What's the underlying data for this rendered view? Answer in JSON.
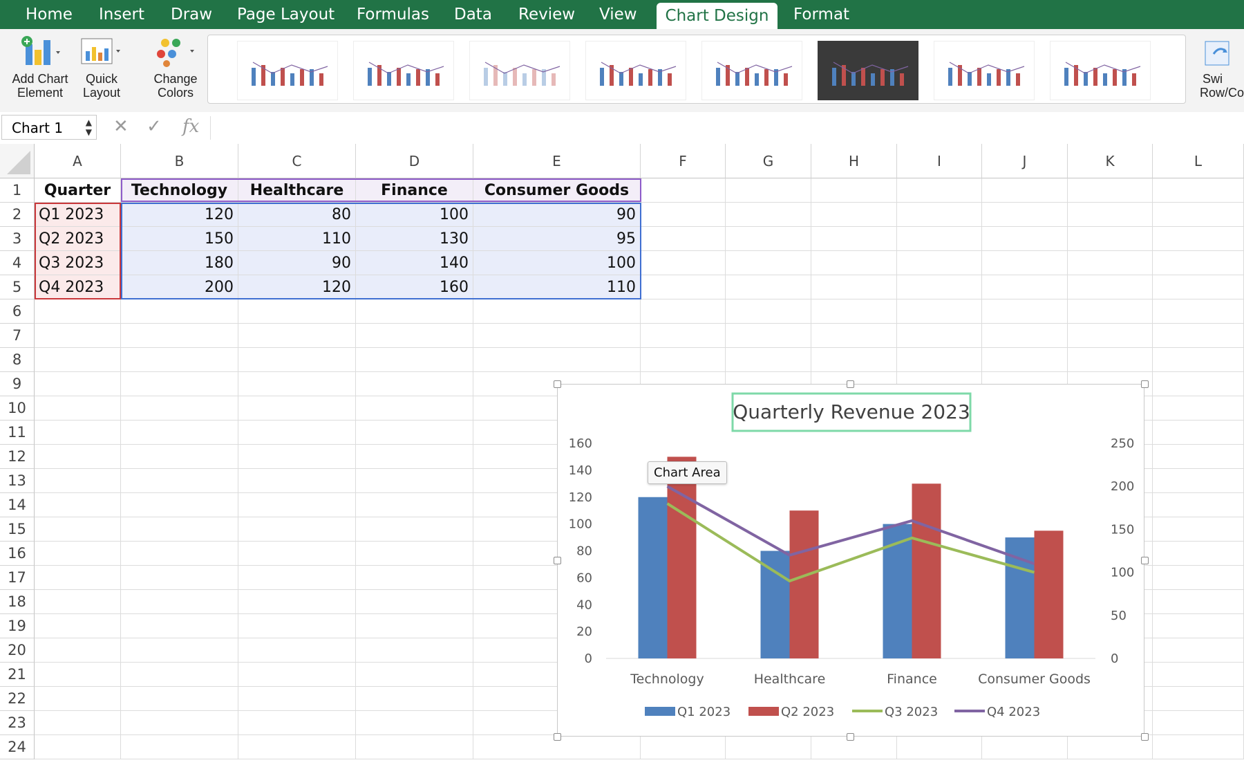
{
  "tabs": [
    {
      "label": "Home",
      "active": false
    },
    {
      "label": "Insert",
      "active": false
    },
    {
      "label": "Draw",
      "active": false
    },
    {
      "label": "Page Layout",
      "active": false
    },
    {
      "label": "Formulas",
      "active": false
    },
    {
      "label": "Data",
      "active": false
    },
    {
      "label": "Review",
      "active": false
    },
    {
      "label": "View",
      "active": false
    },
    {
      "label": "Chart Design",
      "active": true
    },
    {
      "label": "Format",
      "active": false
    }
  ],
  "ribbon": {
    "add_chart_element_line1": "Add Chart",
    "add_chart_element_line2": "Element",
    "quick_layout_line1": "Quick",
    "quick_layout_line2": "Layout",
    "change_colors_line1": "Change",
    "change_colors_line2": "Colors",
    "switch_line1": "Swi",
    "switch_line2": "Row/Co"
  },
  "formula_bar": {
    "name_box": "Chart 1",
    "fx": "fx",
    "value": ""
  },
  "columns": [
    "A",
    "B",
    "C",
    "D",
    "E",
    "F",
    "G",
    "H",
    "I",
    "J",
    "K",
    "L"
  ],
  "rows": [
    "1",
    "2",
    "3",
    "4",
    "5",
    "6",
    "7",
    "8",
    "9",
    "10",
    "11",
    "12",
    "13",
    "14",
    "15",
    "16",
    "17",
    "18",
    "19",
    "20",
    "21",
    "22",
    "23",
    "24"
  ],
  "table": {
    "headers": [
      "Quarter",
      "Technology",
      "Healthcare",
      "Finance",
      "Consumer Goods"
    ],
    "rows": [
      [
        "Q1 2023",
        "120",
        "80",
        "100",
        "90"
      ],
      [
        "Q2 2023",
        "150",
        "110",
        "130",
        "95"
      ],
      [
        "Q3 2023",
        "180",
        "90",
        "140",
        "100"
      ],
      [
        "Q4 2023",
        "200",
        "120",
        "160",
        "110"
      ]
    ]
  },
  "tooltip": "Chart Area",
  "colors": {
    "ribbon_green": "#217346",
    "q1": "#4F81BD",
    "q2": "#C0504D",
    "q3": "#9BBB59",
    "q4": "#8064A2",
    "title_border": "#7ED9A8"
  },
  "chart_data": {
    "type": "bar",
    "title": "Quarterly Revenue 2023",
    "categories": [
      "Technology",
      "Healthcare",
      "Finance",
      "Consumer Goods"
    ],
    "series": [
      {
        "name": "Q1 2023",
        "type": "bar",
        "axis": "primary",
        "values": [
          120,
          80,
          100,
          90
        ]
      },
      {
        "name": "Q2 2023",
        "type": "bar",
        "axis": "primary",
        "values": [
          150,
          110,
          130,
          95
        ]
      },
      {
        "name": "Q3 2023",
        "type": "line",
        "axis": "secondary",
        "values": [
          180,
          90,
          140,
          100
        ]
      },
      {
        "name": "Q4 2023",
        "type": "line",
        "axis": "secondary",
        "values": [
          200,
          120,
          160,
          110
        ]
      }
    ],
    "y_primary": {
      "ylim": [
        0,
        160
      ],
      "ticks": [
        0,
        20,
        40,
        60,
        80,
        100,
        120,
        140,
        160
      ]
    },
    "y_secondary": {
      "ylim": [
        0,
        250
      ],
      "ticks": [
        0,
        50,
        100,
        150,
        200,
        250
      ]
    },
    "legend": "bottom",
    "grid": false
  }
}
